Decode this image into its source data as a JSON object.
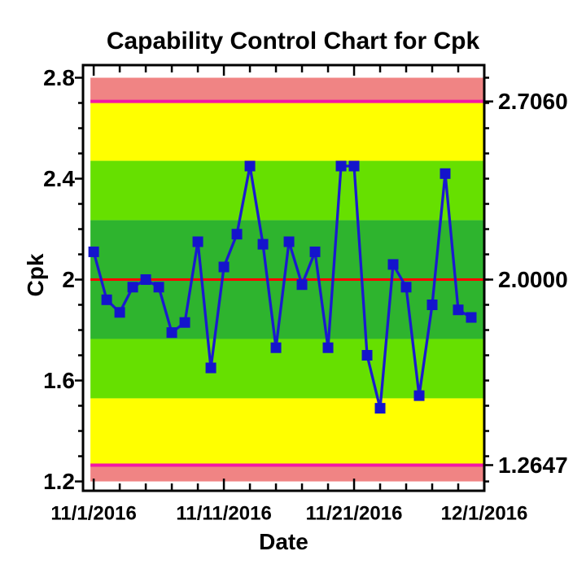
{
  "chart_data": {
    "type": "line",
    "subtype": "capability-control-chart",
    "title": "Capability Control Chart for Cpk",
    "xlabel": "Date",
    "ylabel": "Cpk",
    "ylim": [
      1.163,
      2.85
    ],
    "xlim_days": [
      -0.82,
      30
    ],
    "y_minor_step": 0.1,
    "x_minor_step_days": 2,
    "grid": false,
    "legend": "none",
    "y_ticks": [
      {
        "value": 2.8,
        "label": "2.8"
      },
      {
        "value": 2.4,
        "label": "2.4"
      },
      {
        "value": 2.0,
        "label": "2"
      },
      {
        "value": 1.6,
        "label": "1.6"
      },
      {
        "value": 1.2,
        "label": "1.2"
      }
    ],
    "x_ticks": [
      {
        "day": 0,
        "label": "11/1/2016"
      },
      {
        "day": 10,
        "label": "11/11/2016"
      },
      {
        "day": 20,
        "label": "11/21/2016"
      },
      {
        "day": 30,
        "label": "12/1/2016"
      }
    ],
    "center_line": 2.0,
    "ucl": 2.706,
    "lcl": 1.2647,
    "right_labels": [
      {
        "text": "2.7060",
        "value": 2.706
      },
      {
        "text": "2.0000",
        "value": 2.0
      },
      {
        "text": "1.2647",
        "value": 1.2647
      }
    ],
    "zones": [
      {
        "from": 2.8,
        "to": 2.706,
        "color_key": "band_pink"
      },
      {
        "from": 2.706,
        "to": 2.4707,
        "color_key": "band_yellow"
      },
      {
        "from": 2.4707,
        "to": 2.2353,
        "color_key": "band_light_green"
      },
      {
        "from": 2.2353,
        "to": 1.7647,
        "color_key": "band_dark_green"
      },
      {
        "from": 1.7647,
        "to": 1.5293,
        "color_key": "band_light_green"
      },
      {
        "from": 1.5293,
        "to": 1.2647,
        "color_key": "band_yellow"
      },
      {
        "from": 1.2647,
        "to": 1.2,
        "color_key": "band_pink"
      }
    ],
    "dates": [
      "11/1/2016",
      "11/2/2016",
      "11/3/2016",
      "11/4/2016",
      "11/5/2016",
      "11/6/2016",
      "11/7/2016",
      "11/8/2016",
      "11/9/2016",
      "11/10/2016",
      "11/11/2016",
      "11/12/2016",
      "11/13/2016",
      "11/14/2016",
      "11/15/2016",
      "11/16/2016",
      "11/17/2016",
      "11/18/2016",
      "11/19/2016",
      "11/20/2016",
      "11/21/2016",
      "11/22/2016",
      "11/23/2016",
      "11/24/2016",
      "11/25/2016",
      "11/26/2016",
      "11/27/2016",
      "11/28/2016",
      "11/29/2016",
      "11/30/2016"
    ],
    "values": [
      2.11,
      1.92,
      1.87,
      1.97,
      2.0,
      1.97,
      1.79,
      1.83,
      2.15,
      1.65,
      2.05,
      2.18,
      2.45,
      2.14,
      1.73,
      2.15,
      1.98,
      2.11,
      1.73,
      2.45,
      2.45,
      1.7,
      1.49,
      2.06,
      1.97,
      1.54,
      1.9,
      2.42,
      1.88,
      1.85
    ]
  },
  "colors": {
    "background": "#FFFFFF",
    "frame": "#000000",
    "text": "#000000",
    "band_pink": "#F08484",
    "band_yellow": "#FFFF00",
    "band_light_green": "#66E000",
    "band_dark_green": "#2EB42E",
    "limit_line": "#F316A5",
    "center_line": "#FF0000",
    "series_line": "#1A1AD0",
    "marker": "#1414CC"
  }
}
